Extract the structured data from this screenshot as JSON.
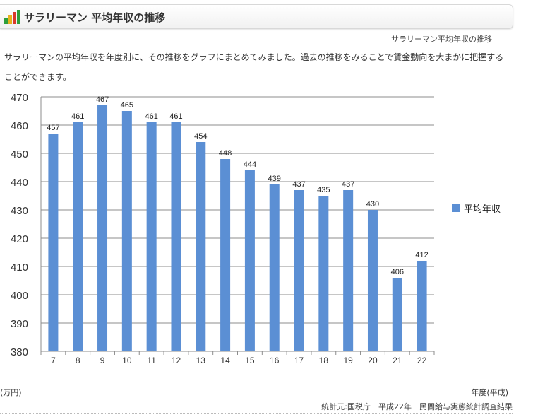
{
  "header": {
    "title": "サラリーマン 平均年収の推移",
    "icon": "bar-chart-icon"
  },
  "caption": "サラリーマン平均年収の推移",
  "description": "サラリーマンの平均年収を年度別に、その推移をグラフにまとめてみました。過去の推移をみることで賃金動向を大まかに把握することができます。",
  "footer": {
    "unit_label": "(万円)",
    "x_unit_label": "年度(平成)",
    "source": "統計元:国税庁　平成22年　民間給与実態統計調査結果"
  },
  "colors": {
    "bar": "#5b8fd4",
    "grid": "#8c8c8c"
  },
  "chart_data": {
    "type": "bar",
    "categories": [
      "7",
      "8",
      "9",
      "10",
      "11",
      "12",
      "13",
      "14",
      "15",
      "16",
      "17",
      "18",
      "19",
      "20",
      "21",
      "22"
    ],
    "series": [
      {
        "name": "平均年収",
        "values": [
          457,
          461,
          467,
          465,
          461,
          461,
          454,
          448,
          444,
          439,
          437,
          435,
          437,
          430,
          406,
          412
        ]
      }
    ],
    "ylim": [
      380,
      470
    ],
    "yticks": [
      380,
      390,
      400,
      410,
      420,
      430,
      440,
      450,
      460,
      470
    ],
    "grid": true,
    "legend": "right",
    "data_labels": true
  }
}
